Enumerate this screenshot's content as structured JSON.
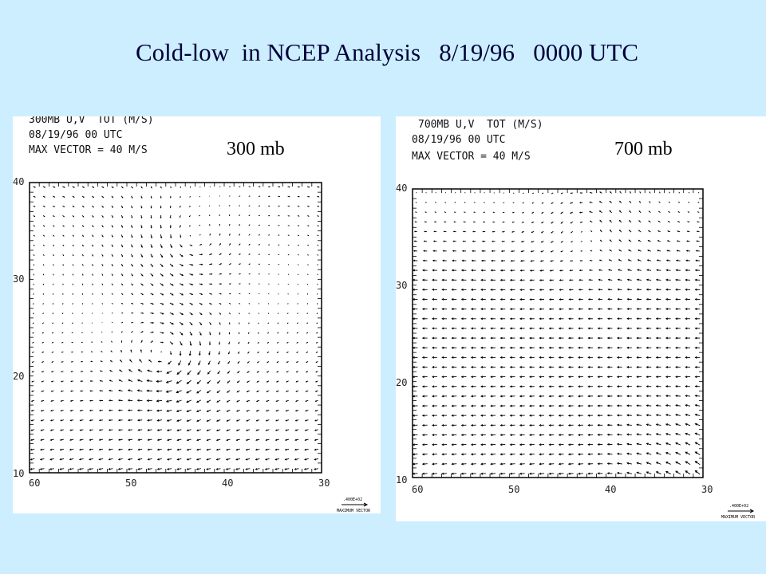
{
  "title": "Cold-low  in NCEP Analysis   8/19/96   0000 UTC",
  "panels": [
    {
      "id": "300",
      "header_lines": [
        "300MB U,V  TOT (M/S)",
        "08/19/96 00 UTC",
        "MAX VECTOR = 40 M/S"
      ],
      "level_label": "300 mb",
      "y_ticks": [
        "40",
        "30",
        "20",
        "10"
      ],
      "x_ticks": [
        "60",
        "50",
        "40",
        "30"
      ],
      "legend_value": ".400E+02",
      "legend_label": "MAXIMUM VECTOR",
      "vortex": "cyclonic circulation centered near 25N, 52W"
    },
    {
      "id": "700",
      "header_lines": [
        "700MB U,V  TOT (M/S)",
        "08/19/96 00 UTC",
        "MAX VECTOR = 40 M/S"
      ],
      "level_label": "700 mb",
      "y_ticks": [
        "40",
        "30",
        "20",
        "10"
      ],
      "x_ticks": [
        "60",
        "50",
        "40",
        "30"
      ],
      "legend_value": ".400E+02",
      "legend_label": "MAXIMUM VECTOR",
      "vortex": "weak easterly flow, anticyclonic turning to north"
    }
  ],
  "colors": {
    "background": "#cceeff",
    "title": "#00003a",
    "arrows": "#000000"
  }
}
